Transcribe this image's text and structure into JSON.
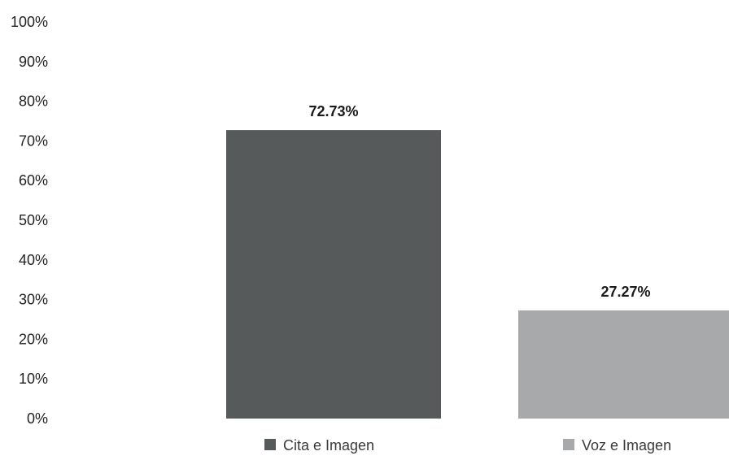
{
  "chart_data": {
    "type": "bar",
    "title": "",
    "xlabel": "",
    "ylabel": "",
    "categories": [
      "Cita e Imagen",
      "Voz e Imagen"
    ],
    "values": [
      72.73,
      27.27
    ],
    "value_labels": [
      "72.73%",
      "27.27%"
    ],
    "colors": [
      "#575a5b",
      "#a7a9aa"
    ],
    "ylim": [
      0,
      100
    ],
    "y_ticks": [
      0,
      10,
      20,
      30,
      40,
      50,
      60,
      70,
      80,
      90,
      100
    ],
    "y_tick_labels": [
      "0%",
      "10%",
      "20%",
      "30%",
      "40%",
      "50%",
      "60%",
      "70%",
      "80%",
      "90%",
      "100%"
    ],
    "grid": false,
    "legend": {
      "placement": "bottom",
      "entries": [
        "Cita e Imagen",
        "Voz e Imagen"
      ]
    }
  }
}
